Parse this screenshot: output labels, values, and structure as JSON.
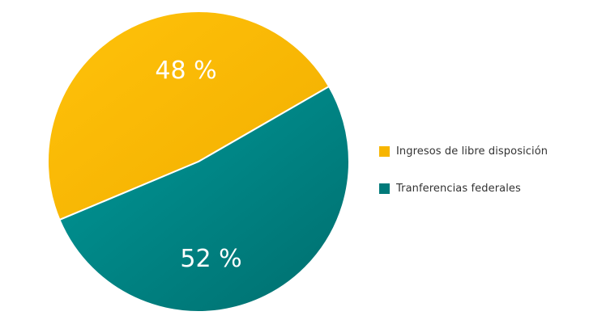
{
  "chart_data": {
    "type": "pie",
    "title": "",
    "legend_position": "right",
    "slices": [
      {
        "name": "Ingresos de libre disposición",
        "value": 48,
        "label": "48 %",
        "color": "#F7B500"
      },
      {
        "name": "Tranferencias federales",
        "value": 52,
        "label": "52 %",
        "color": "#007A7A"
      }
    ]
  }
}
